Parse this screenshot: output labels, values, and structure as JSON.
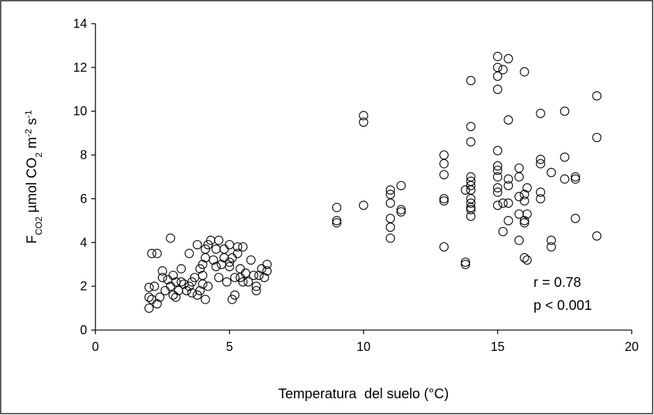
{
  "chart_data": {
    "type": "scatter",
    "xlabel": "Temperatura  del suelo (°C)",
    "ylabel": [
      "F",
      "CO2",
      " µmol CO",
      "2",
      " m",
      "-2",
      " s",
      "-1"
    ],
    "annotations": [
      "r = 0.78",
      "p < 0.001"
    ],
    "xlim": [
      0,
      20
    ],
    "xticks": [
      0,
      5,
      10,
      15,
      20
    ],
    "ylim": [
      0,
      14
    ],
    "yticks": [
      0,
      2,
      4,
      6,
      8,
      10,
      12,
      14
    ],
    "marker_color": "#000000",
    "x": [
      2.0,
      2.0,
      2.0,
      2.1,
      2.1,
      2.2,
      2.3,
      2.3,
      2.4,
      2.5,
      2.5,
      2.6,
      2.7,
      2.8,
      2.8,
      2.9,
      2.9,
      3.0,
      3.0,
      3.1,
      3.2,
      3.2,
      3.3,
      3.4,
      3.5,
      3.5,
      3.6,
      3.6,
      3.7,
      3.8,
      3.8,
      3.9,
      3.9,
      4.0,
      4.0,
      4.0,
      4.1,
      4.1,
      4.1,
      4.2,
      4.2,
      4.3,
      4.4,
      4.5,
      4.5,
      4.6,
      4.6,
      4.7,
      4.8,
      4.8,
      4.9,
      5.0,
      5.0,
      5.0,
      5.1,
      5.1,
      5.2,
      5.2,
      5.3,
      5.3,
      5.4,
      5.4,
      5.5,
      5.5,
      5.6,
      5.7,
      5.8,
      5.9,
      6.0,
      6.0,
      6.1,
      6.2,
      6.3,
      6.4,
      6.4,
      9,
      9,
      9,
      10,
      10,
      10,
      11,
      11,
      11,
      11,
      11,
      11,
      11.4,
      11.4,
      11.4,
      13,
      13,
      13,
      13,
      13,
      13,
      13.8,
      13.8,
      13.8,
      14,
      14,
      14,
      14,
      14,
      14,
      14,
      14,
      14,
      14,
      14,
      14,
      15,
      15,
      15,
      15,
      15,
      15,
      15,
      15,
      15,
      15,
      15,
      15.2,
      15.2,
      15.2,
      15.4,
      15.4,
      15.4,
      15.4,
      15.4,
      15.4,
      15.8,
      15.8,
      15.8,
      15.8,
      15.8,
      16,
      16,
      16,
      16,
      16,
      16,
      16.1,
      16.1,
      16.1,
      16.6,
      16.6,
      16.6,
      16.6,
      16.6,
      17,
      17,
      17,
      17.5,
      17.5,
      17.5,
      17.9,
      17.9,
      17.9,
      18.7,
      18.7,
      18.7
    ],
    "y": [
      1.0,
      1.5,
      1.95,
      1.4,
      3.5,
      2.0,
      3.5,
      1.2,
      1.5,
      2.7,
      2.4,
      1.8,
      2.3,
      4.2,
      2.0,
      1.6,
      2.5,
      1.5,
      2.2,
      1.8,
      2.2,
      2.8,
      2.1,
      1.8,
      3.5,
      2.0,
      2.2,
      1.7,
      2.4,
      1.6,
      3.9,
      2.8,
      1.8,
      3.0,
      2.5,
      2.1,
      1.4,
      3.3,
      3.7,
      2.0,
      3.9,
      4.1,
      3.2,
      2.9,
      3.7,
      4.1,
      2.4,
      3.0,
      3.3,
      3.7,
      2.2,
      2.9,
      3.1,
      3.9,
      1.4,
      3.3,
      1.6,
      2.4,
      3.5,
      3.8,
      2.4,
      2.8,
      3.8,
      2.2,
      2.6,
      2.2,
      3.2,
      2.5,
      2.0,
      1.8,
      2.5,
      2.8,
      2.4,
      3.0,
      2.7,
      5.6,
      4.9,
      5.0,
      9.8,
      9.5,
      5.7,
      6.4,
      6.2,
      5.8,
      5.1,
      4.7,
      4.2,
      6.6,
      5.5,
      5.4,
      8.0,
      7.6,
      7.1,
      6.0,
      5.9,
      3.8,
      6.4,
      3.0,
      3.1,
      11.4,
      9.3,
      8.6,
      7.0,
      6.6,
      6.4,
      6.0,
      5.8,
      5.6,
      5.5,
      5.2,
      6.8,
      12.5,
      12.0,
      11.6,
      11.0,
      8.2,
      7.5,
      7.3,
      7.0,
      6.5,
      6.3,
      5.7,
      11.9,
      5.8,
      4.5,
      12.4,
      9.6,
      6.9,
      6.6,
      5.0,
      5.8,
      7.4,
      7.0,
      6.1,
      5.3,
      4.1,
      11.8,
      6.2,
      5.9,
      5.0,
      4.9,
      3.3,
      6.5,
      5.3,
      3.2,
      9.9,
      7.8,
      7.6,
      6.3,
      6.0,
      7.2,
      4.1,
      3.8,
      10.0,
      7.9,
      6.9,
      7.0,
      6.9,
      5.1,
      10.7,
      8.8,
      4.3
    ]
  }
}
